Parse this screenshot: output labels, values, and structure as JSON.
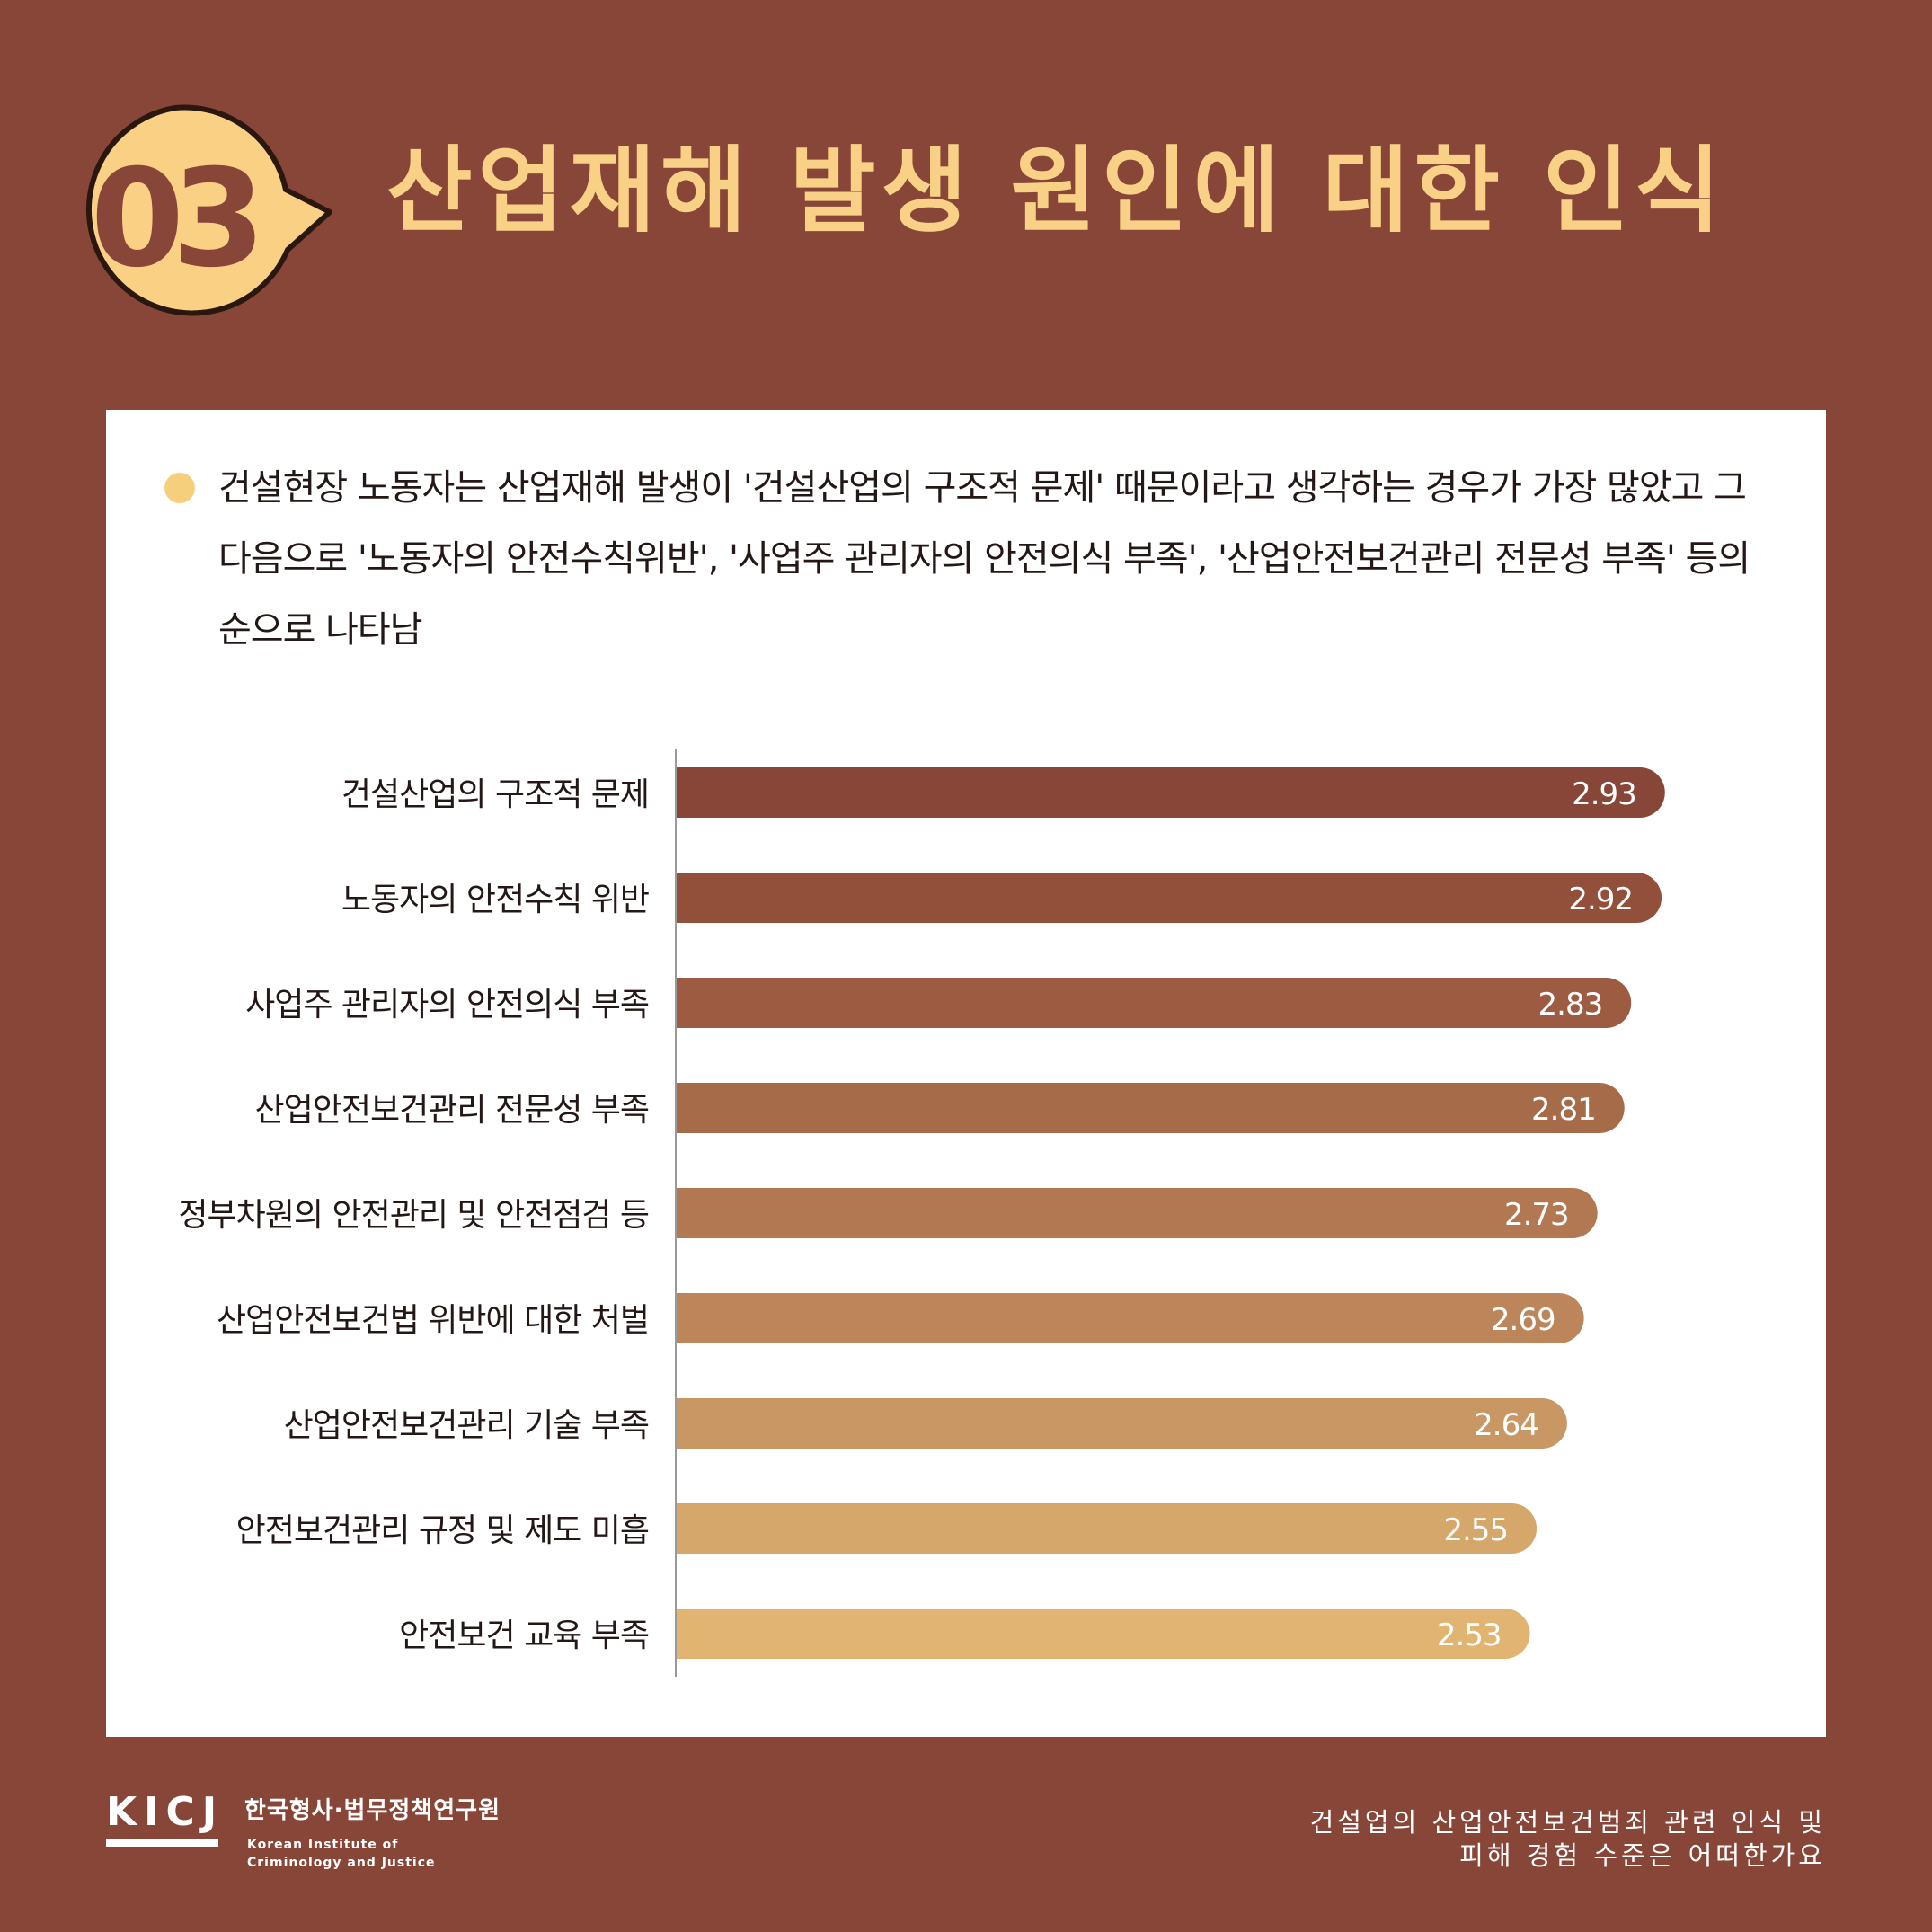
{
  "header": {
    "number": "03",
    "title": "산업재해 발생 원인에 대한 인식"
  },
  "summary": {
    "text": "건설현장 노동자는 산업재해 발생이 '건설산업의 구조적 문제' 때문이라고 생각하는 경우가 가장 많았고 그 다음으로 '노동자의 안전수칙위반', '사업주 관리자의 안전의식 부족', '산업안전보건관리 전문성 부족' 등의 순으로 나타남"
  },
  "chart_data": {
    "type": "bar",
    "orientation": "horizontal",
    "categories": [
      "건설산업의 구조적 문제",
      "노동자의 안전수칙 위반",
      "사업주 관리자의 안전의식 부족",
      "산업안전보건관리 전문성 부족",
      "정부차원의 안전관리 및 안전점검 등",
      "산업안전보건법 위반에 대한 처벌",
      "산업안전보건관리 기술 부족",
      "안전보건관리 규정 및 제도 미흡",
      "안전보건 교육 부족"
    ],
    "values": [
      2.93,
      2.92,
      2.83,
      2.81,
      2.73,
      2.69,
      2.64,
      2.55,
      2.53
    ],
    "value_labels": [
      "2.93",
      "2.92",
      "2.83",
      "2.81",
      "2.73",
      "2.69",
      "2.64",
      "2.55",
      "2.53"
    ],
    "colors": [
      "#874637",
      "#92503b",
      "#9d5c41",
      "#a66b48",
      "#b27852",
      "#bc865a",
      "#c89764",
      "#d5a76a",
      "#e1b571"
    ],
    "xlim": [
      0,
      3.2
    ],
    "title": "",
    "xlabel": "",
    "ylabel": "",
    "grid": false,
    "legend": "none"
  },
  "footer": {
    "logo": "KICJ",
    "org_name_ko": "한국형사·법무정책연구원",
    "org_name_en_1": "Korean Institute of",
    "org_name_en_2": "Criminology and Justice",
    "report_title_1": "건설업의 산업안전보건범죄 관련 인식 및",
    "report_title_2": "피해 경험 수준은 어떠한가요"
  },
  "colors": {
    "background": "#874637",
    "accent_yellow": "#f8d186",
    "badge_fill": "#f9d084",
    "card": "#ffffff",
    "text_dark": "#231815"
  }
}
